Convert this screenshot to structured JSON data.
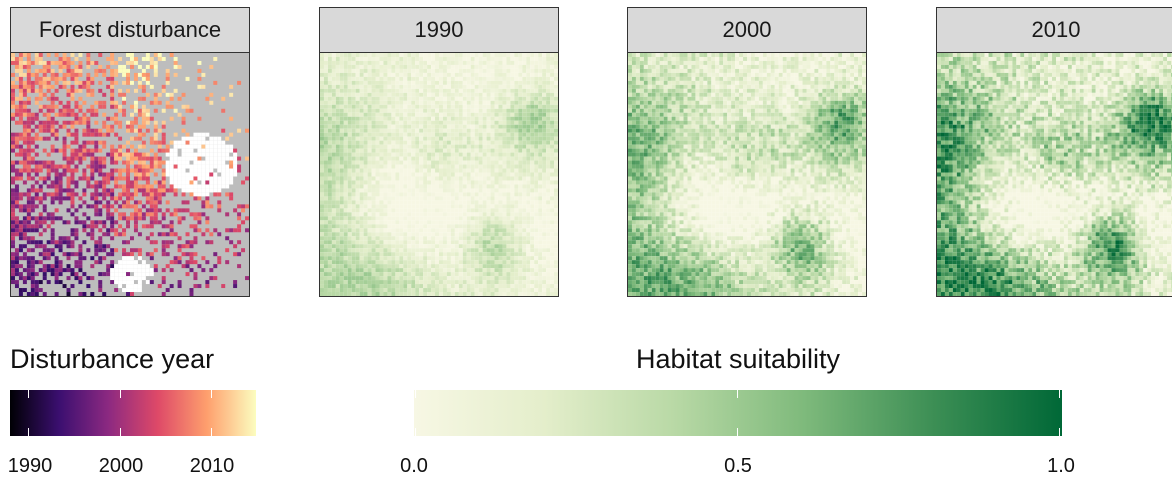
{
  "panels": [
    {
      "label": "Forest disturbance",
      "layer": "disturbance"
    },
    {
      "label": "1990",
      "layer": "suitability",
      "intensity": 0.25
    },
    {
      "label": "2000",
      "layer": "suitability",
      "intensity": 0.6
    },
    {
      "label": "2010",
      "layer": "suitability",
      "intensity": 0.85
    }
  ],
  "legends": {
    "disturbance": {
      "title": "Disturbance year",
      "ticks": [
        "1990",
        "2000",
        "2010"
      ],
      "colors": [
        "#000004",
        "#3b0f70",
        "#8c2981",
        "#de4968",
        "#fe9f6d",
        "#fcfdbf"
      ]
    },
    "suitability": {
      "title": "Habitat suitability",
      "ticks": [
        "0.0",
        "0.5",
        "1.0"
      ],
      "colors": [
        "#f7f7e4",
        "#e4eecb",
        "#b9d9a6",
        "#7fba7c",
        "#3d8f55",
        "#006837"
      ]
    }
  },
  "colors": {
    "strip_bg": "#d9d9d9",
    "no_disturbance": "#bdbdbd",
    "non_forest": "#ffffff"
  }
}
